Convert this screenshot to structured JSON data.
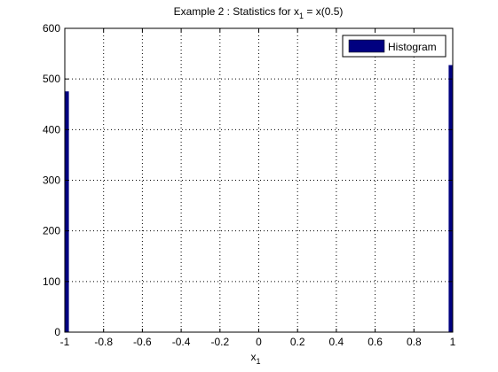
{
  "chart_data": {
    "type": "bar",
    "title": "Example 2 : Statistics for x",
    "title_sub": "1",
    "title_suffix": " = x(0.5)",
    "xlabel": "x",
    "xlabel_sub": "1",
    "ylabel": "",
    "xlim": [
      -1,
      1
    ],
    "ylim": [
      0,
      600
    ],
    "xticks": [
      "-1",
      "-0.8",
      "-0.6",
      "-0.4",
      "-0.2",
      "0",
      "0.2",
      "0.4",
      "0.6",
      "0.8",
      "1"
    ],
    "yticks": [
      "0",
      "100",
      "200",
      "300",
      "400",
      "500",
      "600"
    ],
    "grid": true,
    "legend_position": "top-right",
    "series": [
      {
        "name": "Histogram",
        "color": "#000080",
        "bars": [
          {
            "x0": -1.0,
            "x1": -0.98,
            "value": 475
          },
          {
            "x0": 0.98,
            "x1": 1.0,
            "value": 527
          }
        ]
      }
    ]
  }
}
